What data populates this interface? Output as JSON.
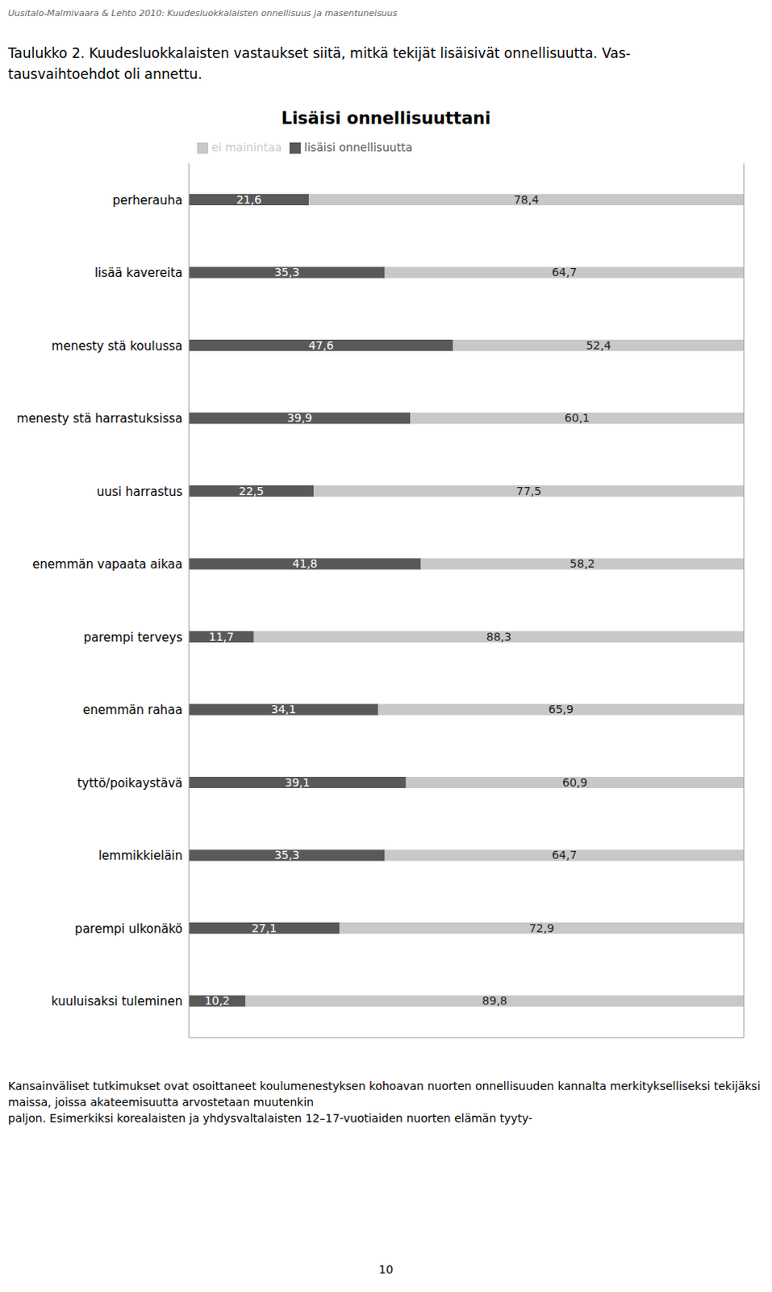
{
  "chart_data": {
    "type": "bar",
    "title": "Lisäisi onnellisuuttani",
    "annotations": [
      "Uusitalo-Malmivaara & Lehto 2010: Kuudesluokkalaisten onnellisuus ja masentuneisuus",
      "Taulukko 2. Kuudesluokkalaisten vastaukset siitä, mitkä tekijät lisäisivät onnellisuutta. Vas-",
      "tausvaihtoehdot oli annettu.",
      "Kansainväliset tutkimukset ovat osoittaneet koulumenestyksen kohoavan nuorten onnellisuuden kannalta merkitykselliseksi tekijäksi maissa, joissa akateemisuutta arvostetaan muutenkin",
      "paljon. Esimerkiksi korealaisten ja yhdysvaltalaisten 12–17-vuotiaiden nuorten elämän tyyty-",
      "10"
    ],
    "categories": [
      "perherauha",
      "lisää kavereita",
      "menesty stä koulussa",
      "menesty stä harrastuksissa",
      "uusi harrastus",
      "enemmän vapaata aikaa",
      "parempi terveys",
      "enemmän rahaa",
      "tyttö/poikaystävä",
      "lemmikkieläin",
      "parempi ulkonäkö",
      "kuuluisaksi tuleminen"
    ],
    "series": [
      {
        "name": "lisäisi onnellisuutta",
        "color": "#595959",
        "values": [
          21.6,
          35.3,
          47.6,
          39.9,
          22.5,
          41.8,
          11.7,
          34.1,
          39.1,
          35.3,
          27.1,
          10.2
        ],
        "value_labels": [
          "21,6",
          "35,3",
          "47,6",
          "39,9",
          "22,5",
          "41,8",
          "11,7",
          "34,1",
          "39,1",
          "35,3",
          "27,1",
          "10,2"
        ]
      },
      {
        "name": "ei mainintaa",
        "color": "#c8c8c8",
        "values": [
          78.4,
          64.7,
          52.4,
          60.1,
          77.5,
          58.2,
          88.3,
          65.9,
          60.9,
          64.7,
          72.9,
          89.8
        ],
        "value_labels": [
          "78,4",
          "64,7",
          "52,4",
          "60,1",
          "77,5",
          "58,2",
          "88,3",
          "65,9",
          "60,9",
          "64,7",
          "72,9",
          "89,8"
        ]
      }
    ],
    "xlim": [
      0,
      100
    ],
    "orientation": "horizontal",
    "stacked": true,
    "data_labels": true,
    "tick_labels": "y",
    "legend": "top",
    "grid": false
  }
}
